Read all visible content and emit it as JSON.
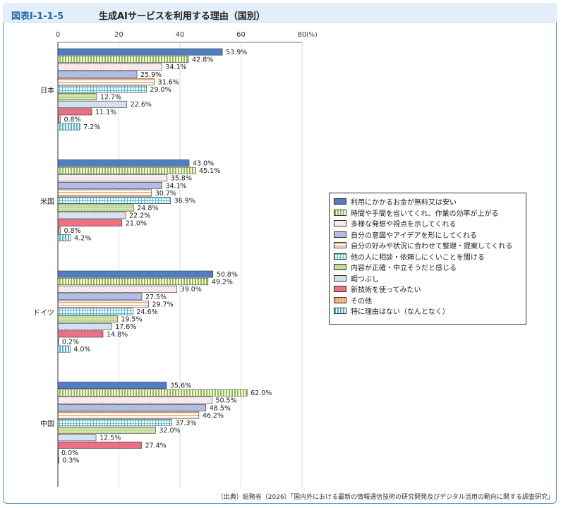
{
  "figure": {
    "number": "図表Ⅰ-1-1-5",
    "title": "生成AIサービスを利用する理由（国別）",
    "source": "（出典）総務省（2026）「国内外における最新の情報通信技術の研究開発及びデジタル活用の動向に関する調査研究」"
  },
  "chart_data": {
    "type": "bar",
    "orientation": "horizontal",
    "title": "生成AIサービスを利用する理由（国別）",
    "categories": [
      "日本",
      "米国",
      "ドイツ",
      "中国"
    ],
    "xlim": [
      0,
      80
    ],
    "x_ticks": [
      "0",
      "20",
      "40",
      "60",
      "80"
    ],
    "unit": "(%)",
    "grid": true,
    "legend_position": "right",
    "series": [
      {
        "name": "利用にかかるお金が無料又は安い",
        "values": [
          53.9,
          43.0,
          50.8,
          35.6
        ],
        "labels": [
          "53.9%",
          "43.0%",
          "50.8%",
          "35.6%"
        ],
        "color": "#4f7fc2",
        "pattern": "solid"
      },
      {
        "name": "時間や手間を省いてくれ、作業の効率が上がる",
        "values": [
          42.8,
          45.1,
          49.2,
          62.0
        ],
        "labels": [
          "42.8%",
          "45.1%",
          "49.2%",
          "62.0%"
        ],
        "color": "#8bbd3c",
        "pattern": "vstripe"
      },
      {
        "name": "多様な発想や視点を示してくれる",
        "values": [
          34.1,
          35.8,
          39.0,
          50.5
        ],
        "labels": [
          "34.1%",
          "35.8%",
          "39.0%",
          "50.5%"
        ],
        "color": "#f4a3b3",
        "pattern": "dots"
      },
      {
        "name": "自分の意図やアイデアを形にしてくれる",
        "values": [
          25.9,
          34.1,
          27.5,
          48.5
        ],
        "labels": [
          "25.9%",
          "34.1%",
          "27.5%",
          "48.5%"
        ],
        "color": "#8e9fd6",
        "pattern": "diag"
      },
      {
        "name": "自分の好みや状況に合わせて整理・提案してくれる",
        "values": [
          31.6,
          30.7,
          29.7,
          46.2
        ],
        "labels": [
          "31.6%",
          "30.7%",
          "29.7%",
          "46.2%"
        ],
        "color": "#f0a877",
        "pattern": "hstripe"
      },
      {
        "name": "他の人に相談・依頼しにくいことを聞ける",
        "values": [
          29.0,
          36.9,
          24.6,
          37.3
        ],
        "labels": [
          "29.0%",
          "36.9%",
          "24.6%",
          "37.3%"
        ],
        "color": "#49c0d6",
        "pattern": "grid"
      },
      {
        "name": "内容が正確・中立そうだと感じる",
        "values": [
          12.7,
          24.8,
          19.5,
          32.0
        ],
        "labels": [
          "12.7%",
          "24.8%",
          "19.5%",
          "32.0%"
        ],
        "color": "#a7cf68",
        "pattern": "zigzag"
      },
      {
        "name": "暇つぶし",
        "values": [
          22.6,
          22.2,
          17.6,
          12.5
        ],
        "labels": [
          "22.6%",
          "22.2%",
          "17.6%",
          "12.5%"
        ],
        "color": "#5c7fc6",
        "pattern": "cross"
      },
      {
        "name": "新技術を使ってみたい",
        "values": [
          11.1,
          21.0,
          14.8,
          27.4
        ],
        "labels": [
          "11.1%",
          "21.0%",
          "14.8%",
          "27.4%"
        ],
        "color": "#ec6f83",
        "pattern": "solid"
      },
      {
        "name": "その他",
        "values": [
          0.8,
          0.8,
          0.2,
          0.0
        ],
        "labels": [
          "0.8%",
          "0.8%",
          "0.2%",
          "0.0%"
        ],
        "color": "#ef8a2e",
        "pattern": "dotsdense"
      },
      {
        "name": "特に理由はない（なんとなく）",
        "values": [
          7.2,
          4.2,
          4.0,
          0.3
        ],
        "labels": [
          "7.2%",
          "4.2%",
          "4.0%",
          "0.3%"
        ],
        "color": "#3fb7cf",
        "pattern": "vstripe"
      }
    ]
  }
}
